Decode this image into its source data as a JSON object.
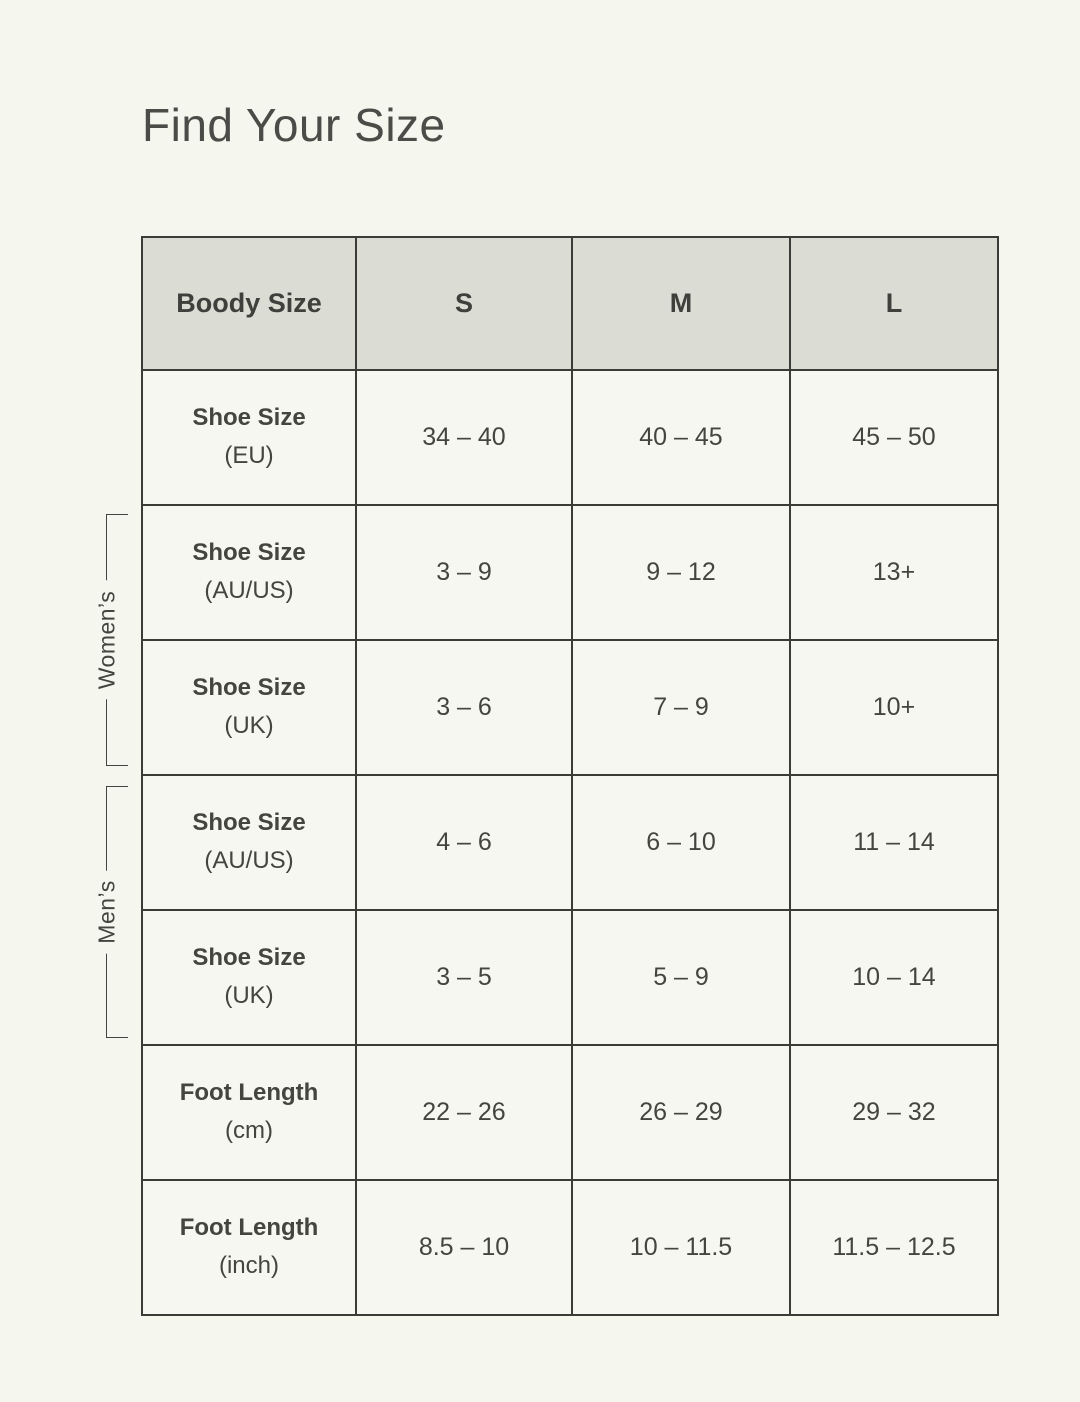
{
  "page": {
    "title": "Find Your Size"
  },
  "colors": {
    "page_background": "#f5f6ee",
    "header_background": "#dbdcd4",
    "cell_background": "#f6f7f0",
    "border": "#3b3b38",
    "text": "#454540"
  },
  "table": {
    "headers": [
      "Boody Size",
      "S",
      "M",
      "L"
    ],
    "rows": [
      {
        "label": "Shoe Size",
        "sublabel": "(EU)",
        "values": [
          "34 – 40",
          "40 – 45",
          "45 – 50"
        ]
      },
      {
        "label": "Shoe Size",
        "sublabel": "(AU/US)",
        "values": [
          "3 – 9",
          "9 – 12",
          "13+"
        ]
      },
      {
        "label": "Shoe Size",
        "sublabel": "(UK)",
        "values": [
          "3 – 6",
          "7 – 9",
          "10+"
        ]
      },
      {
        "label": "Shoe Size",
        "sublabel": "(AU/US)",
        "values": [
          "4 – 6",
          "6 – 10",
          "11 – 14"
        ]
      },
      {
        "label": "Shoe Size",
        "sublabel": "(UK)",
        "values": [
          "3 – 5",
          "5 – 9",
          "10 – 14"
        ]
      },
      {
        "label": "Foot Length",
        "sublabel": "(cm)",
        "values": [
          "22 – 26",
          "26 – 29",
          "29 – 32"
        ]
      },
      {
        "label": "Foot Length",
        "sublabel": "(inch)",
        "values": [
          "8.5 – 10",
          "10 – 11.5",
          "11.5 – 12.5"
        ]
      }
    ],
    "groups": [
      {
        "label": "Women’s",
        "row_span": "Shoe Size (AU/US) and Shoe Size (UK)"
      },
      {
        "label": "Men’s",
        "row_span": "Shoe Size (AU/US) and Shoe Size (UK)"
      }
    ]
  }
}
